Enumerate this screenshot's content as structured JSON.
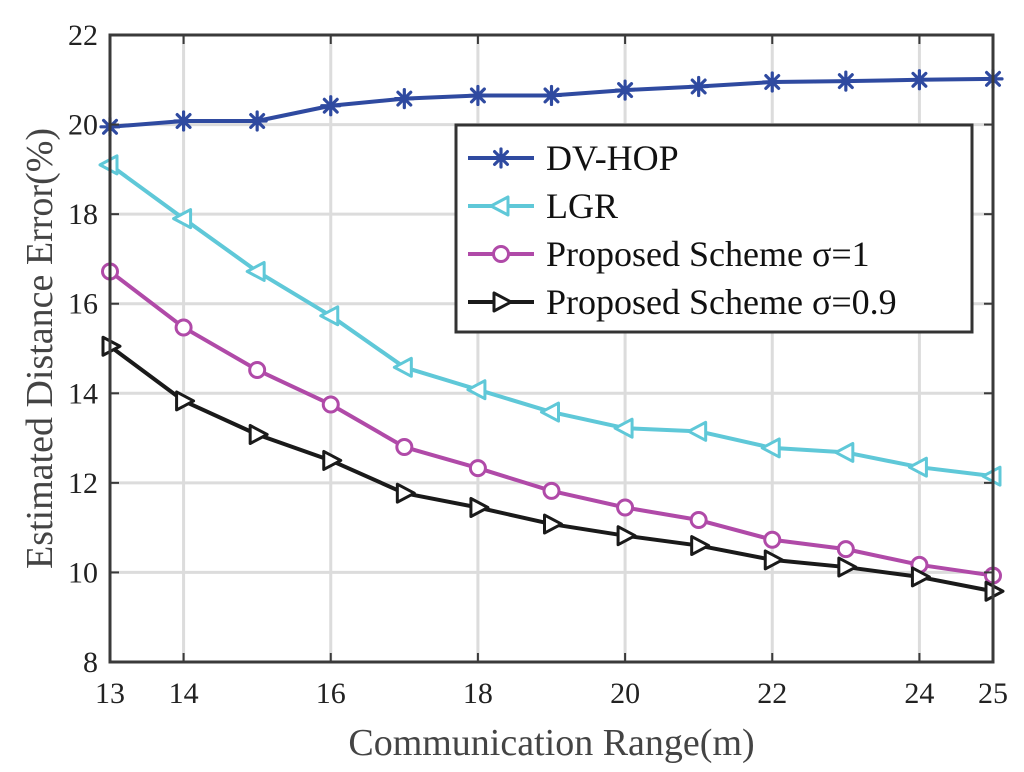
{
  "chart_data": {
    "type": "line",
    "title": "",
    "xlabel": "Communication Range(m)",
    "ylabel": "Estimated Distance Error(%)",
    "xlim": [
      13,
      25
    ],
    "ylim": [
      8,
      22
    ],
    "xticks": [
      13,
      14,
      16,
      18,
      20,
      22,
      24,
      25
    ],
    "yticks": [
      8,
      10,
      12,
      14,
      16,
      18,
      20,
      22
    ],
    "grid": true,
    "legend_position": "top-right",
    "x": [
      13,
      14,
      15,
      16,
      17,
      18,
      19,
      20,
      21,
      22,
      23,
      24,
      25
    ],
    "series": [
      {
        "name": "DV-HOP",
        "color": "#2f4aa0",
        "marker": "asterisk",
        "values": [
          19.95,
          20.08,
          20.08,
          20.42,
          20.58,
          20.65,
          20.65,
          20.77,
          20.85,
          20.95,
          20.97,
          21.0,
          21.02
        ]
      },
      {
        "name": "LGR",
        "color": "#5fc8d8",
        "marker": "triangle-left",
        "values": [
          19.1,
          17.9,
          16.72,
          15.73,
          14.58,
          14.08,
          13.58,
          13.22,
          13.15,
          12.78,
          12.68,
          12.35,
          12.15
        ]
      },
      {
        "name": "Proposed Scheme σ=1",
        "color": "#b04aa8",
        "marker": "circle",
        "values": [
          16.72,
          15.47,
          14.52,
          13.75,
          12.8,
          12.33,
          11.82,
          11.45,
          11.17,
          10.73,
          10.52,
          10.17,
          9.93
        ]
      },
      {
        "name": "Proposed Scheme σ=0.9",
        "color": "#1a1a1a",
        "marker": "triangle-right",
        "values": [
          15.05,
          13.83,
          13.08,
          12.5,
          11.77,
          11.45,
          11.08,
          10.82,
          10.6,
          10.28,
          10.12,
          9.9,
          9.58
        ]
      }
    ]
  }
}
